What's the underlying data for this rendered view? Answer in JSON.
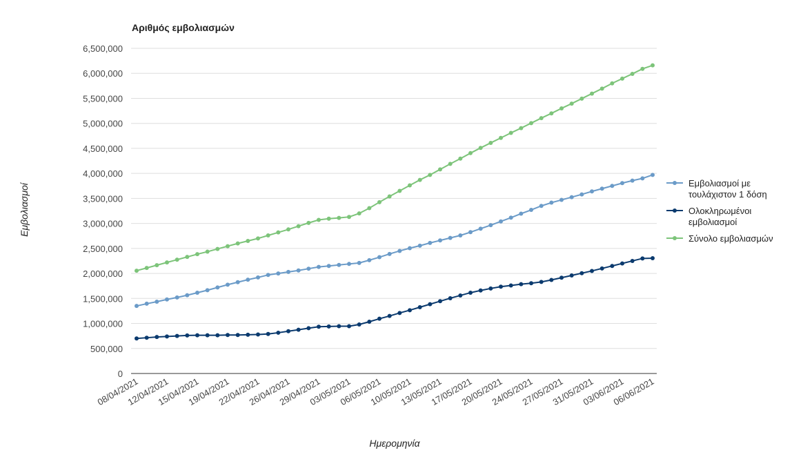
{
  "chart_data": {
    "type": "line",
    "title": "Αριθμός εμβολιασμών",
    "xlabel": "Ημερομηνία",
    "ylabel": "Εμβολιασμοί",
    "ylim": [
      0,
      6500000
    ],
    "y_ticks": [
      0,
      500000,
      1000000,
      1500000,
      2000000,
      2500000,
      3000000,
      3500000,
      4000000,
      4500000,
      5000000,
      5500000,
      6000000,
      6500000
    ],
    "y_tick_labels": [
      "0",
      "500,000",
      "1,000,000",
      "1,500,000",
      "2,000,000",
      "2,500,000",
      "3,000,000",
      "3,500,000",
      "4,000,000",
      "4,500,000",
      "5,000,000",
      "5,500,000",
      "6,000,000",
      "6,500,000"
    ],
    "x_tick_labels": [
      "08/04/2021",
      "12/04/2021",
      "15/04/2021",
      "19/04/2021",
      "22/04/2021",
      "26/04/2021",
      "29/04/2021",
      "03/05/2021",
      "06/05/2021",
      "10/05/2021",
      "13/05/2021",
      "17/05/2021",
      "20/05/2021",
      "24/05/2021",
      "27/05/2021",
      "31/05/2021",
      "03/06/2021",
      "06/06/2021"
    ],
    "x_tick_every": 3,
    "grid": true,
    "legend_position": "right",
    "series": [
      {
        "name": "Εμβολιασμοί με τουλάχιστον 1 δόση",
        "name_lines": [
          "Εμβολιασμοί με",
          "τουλάχιστον 1 δόση"
        ],
        "color": "#6b9bc8",
        "values": [
          1350000,
          1395000,
          1435000,
          1480000,
          1520000,
          1565000,
          1615000,
          1665000,
          1720000,
          1775000,
          1825000,
          1875000,
          1920000,
          1970000,
          2000000,
          2030000,
          2060000,
          2095000,
          2130000,
          2150000,
          2170000,
          2190000,
          2210000,
          2265000,
          2325000,
          2390000,
          2450000,
          2505000,
          2555000,
          2610000,
          2660000,
          2710000,
          2760000,
          2825000,
          2895000,
          2965000,
          3040000,
          3115000,
          3195000,
          3270000,
          3350000,
          3415000,
          3470000,
          3525000,
          3580000,
          3640000,
          3695000,
          3750000,
          3805000,
          3855000,
          3900000,
          3970000
        ]
      },
      {
        "name": "Ολοκληρωμένοι εμβολιασμοί",
        "name_lines": [
          "Ολοκληρωμένοι",
          "εμβολιασμοί"
        ],
        "color": "#0b3a6e",
        "values": [
          700000,
          715000,
          730000,
          740000,
          750000,
          760000,
          765000,
          765000,
          765000,
          770000,
          770000,
          775000,
          780000,
          790000,
          815000,
          845000,
          875000,
          905000,
          935000,
          940000,
          945000,
          945000,
          980000,
          1035000,
          1095000,
          1150000,
          1210000,
          1265000,
          1325000,
          1385000,
          1445000,
          1505000,
          1560000,
          1615000,
          1660000,
          1700000,
          1735000,
          1760000,
          1785000,
          1805000,
          1830000,
          1870000,
          1915000,
          1960000,
          2005000,
          2050000,
          2100000,
          2150000,
          2200000,
          2250000,
          2300000,
          2305000
        ]
      },
      {
        "name": "Σύνολο εμβολιασμών",
        "name_lines": [
          "Σύνολο εμβολιασμών"
        ],
        "color": "#7dc47a",
        "values": [
          2055000,
          2110000,
          2165000,
          2220000,
          2275000,
          2330000,
          2385000,
          2435000,
          2490000,
          2545000,
          2600000,
          2650000,
          2700000,
          2760000,
          2820000,
          2880000,
          2945000,
          3010000,
          3070000,
          3095000,
          3110000,
          3130000,
          3200000,
          3305000,
          3425000,
          3540000,
          3650000,
          3760000,
          3870000,
          3970000,
          4080000,
          4190000,
          4295000,
          4405000,
          4510000,
          4610000,
          4710000,
          4810000,
          4905000,
          5005000,
          5105000,
          5200000,
          5300000,
          5395000,
          5495000,
          5595000,
          5695000,
          5800000,
          5895000,
          5990000,
          6090000,
          6160000
        ]
      }
    ]
  }
}
